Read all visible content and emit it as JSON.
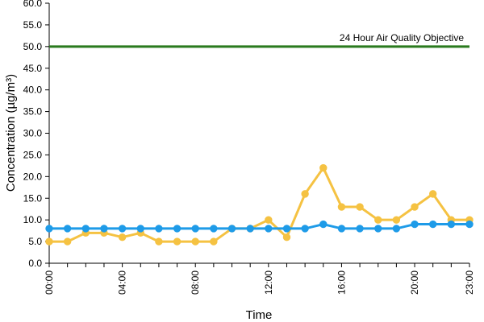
{
  "chart_data": {
    "type": "line",
    "xlabel": "Time",
    "ylabel": "Concentration (µg/m³)",
    "ylim": [
      0,
      60
    ],
    "yticks": [
      "0.0",
      "5.0",
      "10.0",
      "15.0",
      "20.0",
      "25.0",
      "30.0",
      "35.0",
      "40.0",
      "45.0",
      "50.0",
      "55.0",
      "60.0"
    ],
    "x": [
      "00:00",
      "01:00",
      "02:00",
      "03:00",
      "04:00",
      "05:00",
      "06:00",
      "07:00",
      "08:00",
      "09:00",
      "10:00",
      "11:00",
      "12:00",
      "13:00",
      "14:00",
      "15:00",
      "16:00",
      "17:00",
      "18:00",
      "19:00",
      "20:00",
      "21:00",
      "22:00",
      "23:00"
    ],
    "xtick_labels": [
      "00:00",
      "04:00",
      "08:00",
      "12:00",
      "16:00",
      "20:00",
      "23:00"
    ],
    "grid": false,
    "legend": "none",
    "series": [
      {
        "color": "#f5c242",
        "values": [
          5,
          5,
          7,
          7,
          6,
          7,
          5,
          5,
          5,
          5,
          8,
          8,
          10,
          6,
          16,
          22,
          13,
          13,
          10,
          10,
          13,
          16,
          10,
          10
        ]
      },
      {
        "color": "#1e9be8",
        "values": [
          8,
          8,
          8,
          8,
          8,
          8,
          8,
          8,
          8,
          8,
          8,
          8,
          8,
          8,
          8,
          9,
          8,
          8,
          8,
          8,
          9,
          9,
          9,
          9
        ]
      }
    ],
    "objective": {
      "value": 50,
      "label": "24 Hour Air Quality Objective",
      "color": "#2a7a1e"
    }
  }
}
